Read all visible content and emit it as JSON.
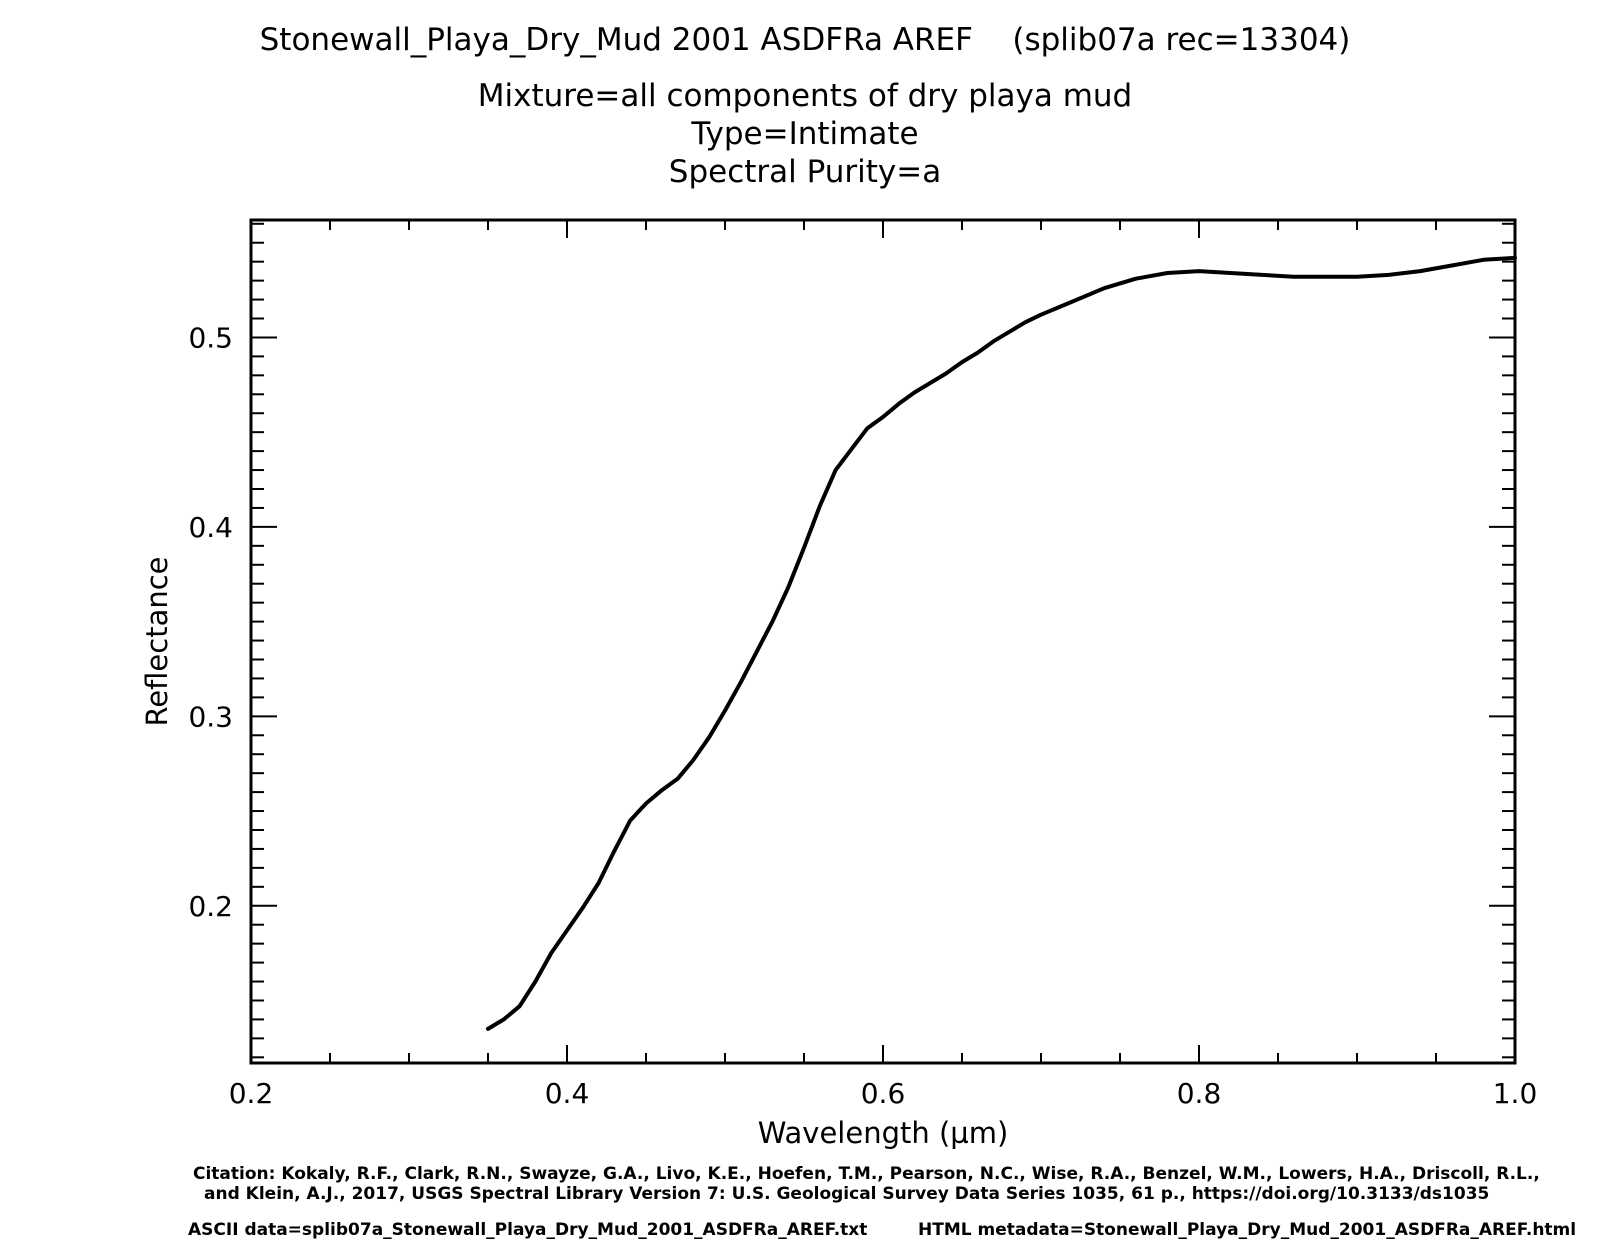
{
  "titles": {
    "line1": "Stonewall_Playa_Dry_Mud 2001 ASDFRa AREF    (splib07a rec=13304)",
    "line2": "Mixture=all components of dry playa mud",
    "line3": "Type=Intimate",
    "line4": "Spectral Purity=a"
  },
  "footer": {
    "citation1": "Citation: Kokaly, R.F., Clark, R.N., Swayze, G.A., Livo, K.E., Hoefen, T.M., Pearson, N.C., Wise, R.A., Benzel, W.M., Lowers, H.A., Driscoll, R.L.,",
    "citation2": "and Klein, A.J., 2017, USGS Spectral Library Version 7: U.S. Geological Survey Data Series 1035, 61 p., https://doi.org/10.3133/ds1035",
    "ascii": "ASCII data=splib07a_Stonewall_Playa_Dry_Mud_2001_ASDFRa_AREF.txt",
    "html": "HTML metadata=Stonewall_Playa_Dry_Mud_2001_ASDFRa_AREF.html"
  },
  "chart_data": {
    "type": "line",
    "xlabel": "Wavelength (µm)",
    "ylabel": "Reflectance",
    "xlim": [
      0.2,
      1.0
    ],
    "ylim": [
      0.117,
      0.562
    ],
    "xticks": [
      "0.2",
      "0.4",
      "0.6",
      "0.8",
      "1.0"
    ],
    "yticks": [
      "0.2",
      "0.3",
      "0.4",
      "0.5"
    ],
    "grid": false,
    "line_color": "#000000",
    "series": [
      {
        "x": [
          0.35,
          0.36,
          0.37,
          0.38,
          0.39,
          0.4,
          0.41,
          0.42,
          0.43,
          0.44,
          0.45,
          0.46,
          0.47,
          0.48,
          0.49,
          0.5,
          0.51,
          0.52,
          0.53,
          0.54,
          0.55,
          0.56,
          0.57,
          0.58,
          0.59,
          0.6,
          0.61,
          0.62,
          0.63,
          0.64,
          0.65,
          0.66,
          0.67,
          0.68,
          0.69,
          0.7,
          0.72,
          0.74,
          0.76,
          0.78,
          0.8,
          0.82,
          0.84,
          0.86,
          0.88,
          0.9,
          0.92,
          0.94,
          0.96,
          0.98,
          1.0
        ],
        "y": [
          0.135,
          0.14,
          0.147,
          0.16,
          0.175,
          0.187,
          0.199,
          0.212,
          0.229,
          0.245,
          0.254,
          0.261,
          0.267,
          0.277,
          0.289,
          0.303,
          0.318,
          0.334,
          0.35,
          0.368,
          0.389,
          0.411,
          0.43,
          0.441,
          0.452,
          0.458,
          0.465,
          0.471,
          0.476,
          0.481,
          0.487,
          0.492,
          0.498,
          0.503,
          0.508,
          0.512,
          0.519,
          0.526,
          0.531,
          0.534,
          0.535,
          0.534,
          0.533,
          0.532,
          0.532,
          0.532,
          0.533,
          0.535,
          0.538,
          0.541,
          0.542
        ]
      }
    ]
  }
}
